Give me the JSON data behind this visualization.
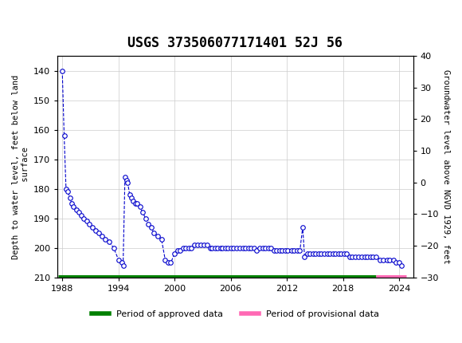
{
  "title": "USGS 373506077171401 52J 56",
  "ylabel_left": "Depth to water level, feet below land\n surface",
  "ylabel_right": "Groundwater level above NGVD 1929, feet",
  "header_bg": "#1a6b3c",
  "ylim_left": [
    210,
    135
  ],
  "ylim_right": [
    -30,
    40
  ],
  "xlim": [
    1987.5,
    2025.5
  ],
  "yticks_left": [
    140,
    150,
    160,
    170,
    180,
    190,
    200,
    210
  ],
  "yticks_right": [
    40,
    30,
    20,
    10,
    0,
    -10,
    -20,
    -30
  ],
  "xticks": [
    1988,
    1994,
    2000,
    2006,
    2012,
    2018,
    2024
  ],
  "data_color": "#0000cc",
  "approved_color": "#008000",
  "provisional_color": "#ff69b4",
  "legend_approved": "Period of approved data",
  "legend_provisional": "Period of provisional data",
  "approved_xstart": 1987.6,
  "approved_xend": 2021.5,
  "provisional_xstart": 2021.5,
  "provisional_xend": 2024.8,
  "background_color": "#ffffff",
  "grid_color": "#cccccc",
  "raw_data": [
    [
      1988.0,
      140
    ],
    [
      1988.2,
      162
    ],
    [
      1988.4,
      180
    ],
    [
      1988.6,
      181
    ],
    [
      1988.8,
      183
    ],
    [
      1989.0,
      185
    ],
    [
      1989.2,
      186
    ],
    [
      1989.5,
      187
    ],
    [
      1989.8,
      188
    ],
    [
      1990.0,
      189
    ],
    [
      1990.3,
      190
    ],
    [
      1990.6,
      191
    ],
    [
      1990.9,
      192
    ],
    [
      1991.2,
      193
    ],
    [
      1991.6,
      194
    ],
    [
      1991.9,
      195
    ],
    [
      1992.2,
      196
    ],
    [
      1992.6,
      197
    ],
    [
      1993.0,
      198
    ],
    [
      1993.5,
      200
    ],
    [
      1994.0,
      204
    ],
    [
      1994.4,
      205
    ],
    [
      1994.5,
      206
    ],
    [
      1994.7,
      176
    ],
    [
      1994.85,
      177
    ],
    [
      1995.0,
      178
    ],
    [
      1995.2,
      182
    ],
    [
      1995.4,
      183
    ],
    [
      1995.6,
      184
    ],
    [
      1995.8,
      185
    ],
    [
      1996.0,
      185
    ],
    [
      1996.3,
      186
    ],
    [
      1996.6,
      188
    ],
    [
      1996.9,
      190
    ],
    [
      1997.2,
      192
    ],
    [
      1997.5,
      193
    ],
    [
      1997.8,
      195
    ],
    [
      1998.2,
      196
    ],
    [
      1998.6,
      197
    ],
    [
      1999.0,
      204
    ],
    [
      1999.3,
      205
    ],
    [
      1999.6,
      205
    ],
    [
      2000.0,
      202
    ],
    [
      2000.3,
      201
    ],
    [
      2000.6,
      201
    ],
    [
      2000.9,
      200
    ],
    [
      2001.2,
      200
    ],
    [
      2001.5,
      200
    ],
    [
      2001.8,
      200
    ],
    [
      2002.1,
      199
    ],
    [
      2002.5,
      199
    ],
    [
      2002.8,
      199
    ],
    [
      2003.1,
      199
    ],
    [
      2003.5,
      199
    ],
    [
      2003.8,
      200
    ],
    [
      2004.0,
      200
    ],
    [
      2004.3,
      200
    ],
    [
      2004.6,
      200
    ],
    [
      2004.9,
      200
    ],
    [
      2005.1,
      200
    ],
    [
      2005.4,
      200
    ],
    [
      2005.7,
      200
    ],
    [
      2006.0,
      200
    ],
    [
      2006.3,
      200
    ],
    [
      2006.6,
      200
    ],
    [
      2007.0,
      200
    ],
    [
      2007.3,
      200
    ],
    [
      2007.6,
      200
    ],
    [
      2007.9,
      200
    ],
    [
      2008.2,
      200
    ],
    [
      2008.5,
      200
    ],
    [
      2008.8,
      201
    ],
    [
      2009.1,
      200
    ],
    [
      2009.4,
      200
    ],
    [
      2009.7,
      200
    ],
    [
      2010.0,
      200
    ],
    [
      2010.3,
      200
    ],
    [
      2010.6,
      201
    ],
    [
      2010.9,
      201
    ],
    [
      2011.2,
      201
    ],
    [
      2011.5,
      201
    ],
    [
      2011.8,
      201
    ],
    [
      2012.1,
      201
    ],
    [
      2012.5,
      201
    ],
    [
      2012.8,
      201
    ],
    [
      2013.1,
      201
    ],
    [
      2013.4,
      201
    ],
    [
      2013.7,
      193
    ],
    [
      2013.9,
      203
    ],
    [
      2014.2,
      202
    ],
    [
      2014.5,
      202
    ],
    [
      2014.8,
      202
    ],
    [
      2015.1,
      202
    ],
    [
      2015.4,
      202
    ],
    [
      2015.7,
      202
    ],
    [
      2016.0,
      202
    ],
    [
      2016.3,
      202
    ],
    [
      2016.6,
      202
    ],
    [
      2016.9,
      202
    ],
    [
      2017.2,
      202
    ],
    [
      2017.5,
      202
    ],
    [
      2017.8,
      202
    ],
    [
      2018.1,
      202
    ],
    [
      2018.4,
      202
    ],
    [
      2018.7,
      203
    ],
    [
      2019.0,
      203
    ],
    [
      2019.3,
      203
    ],
    [
      2019.7,
      203
    ],
    [
      2020.0,
      203
    ],
    [
      2020.3,
      203
    ],
    [
      2020.6,
      203
    ],
    [
      2020.9,
      203
    ],
    [
      2021.2,
      203
    ],
    [
      2021.5,
      203
    ],
    [
      2022.0,
      204
    ],
    [
      2022.3,
      204
    ],
    [
      2022.7,
      204
    ],
    [
      2023.0,
      204
    ],
    [
      2023.4,
      204
    ],
    [
      2023.7,
      205
    ],
    [
      2024.0,
      205
    ],
    [
      2024.3,
      206
    ]
  ]
}
